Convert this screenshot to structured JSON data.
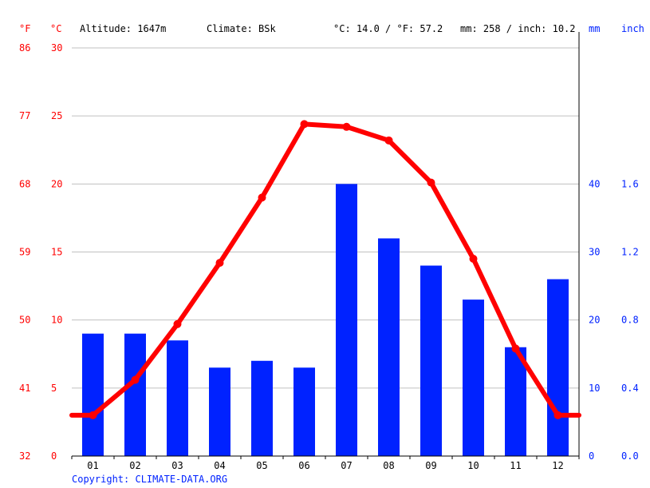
{
  "header": {
    "unit_f": "°F",
    "unit_c": "°C",
    "altitude": "Altitude: 1647m",
    "climate": "Climate: BSk",
    "temp_avg": "°C: 14.0 / °F: 57.2",
    "precip_avg": "mm: 258 / inch: 10.2",
    "unit_mm": "mm",
    "unit_inch": "inch"
  },
  "footer": {
    "copyright": "Copyright: CLIMATE-DATA.ORG"
  },
  "colors": {
    "temperature": "#ff0000",
    "precipitation": "#0022ff",
    "grid": "#c0c0c0",
    "axis": "#000000"
  },
  "chart_data": {
    "type": "bar",
    "categories": [
      "01",
      "02",
      "03",
      "04",
      "05",
      "06",
      "07",
      "08",
      "09",
      "10",
      "11",
      "12"
    ],
    "series": [
      {
        "name": "precipitation",
        "type": "bar",
        "axis": "right",
        "unit": "mm",
        "values": [
          18,
          18,
          17,
          13,
          14,
          13,
          40,
          32,
          28,
          23,
          16,
          26
        ]
      },
      {
        "name": "temperature",
        "type": "line",
        "axis": "left",
        "unit": "°C",
        "values": [
          3.0,
          5.6,
          9.7,
          14.2,
          19.0,
          24.4,
          24.2,
          23.2,
          20.1,
          14.5,
          7.9,
          3.0
        ]
      }
    ],
    "y_left_c": {
      "ylim": [
        0,
        30
      ],
      "ticks": [
        "0",
        "5",
        "10",
        "15",
        "20",
        "25",
        "30"
      ]
    },
    "y_left_f": {
      "ticks": [
        "32",
        "41",
        "50",
        "59",
        "68",
        "77",
        "86"
      ]
    },
    "y_right_mm": {
      "ylim": [
        0,
        60
      ],
      "ticks": [
        "0",
        "10",
        "20",
        "30",
        "40"
      ]
    },
    "y_right_inch": {
      "ticks": [
        "0.0",
        "0.4",
        "0.8",
        "1.2",
        "1.6"
      ]
    },
    "grid": true
  }
}
